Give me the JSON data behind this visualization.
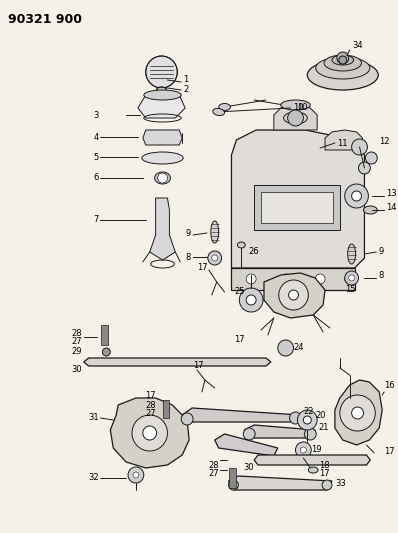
{
  "title": "90321 900",
  "bg_color": "#f5f0e8",
  "line_color": "#1a1a1a",
  "text_color": "#000000",
  "fig_width": 3.98,
  "fig_height": 5.33,
  "dpi": 100
}
